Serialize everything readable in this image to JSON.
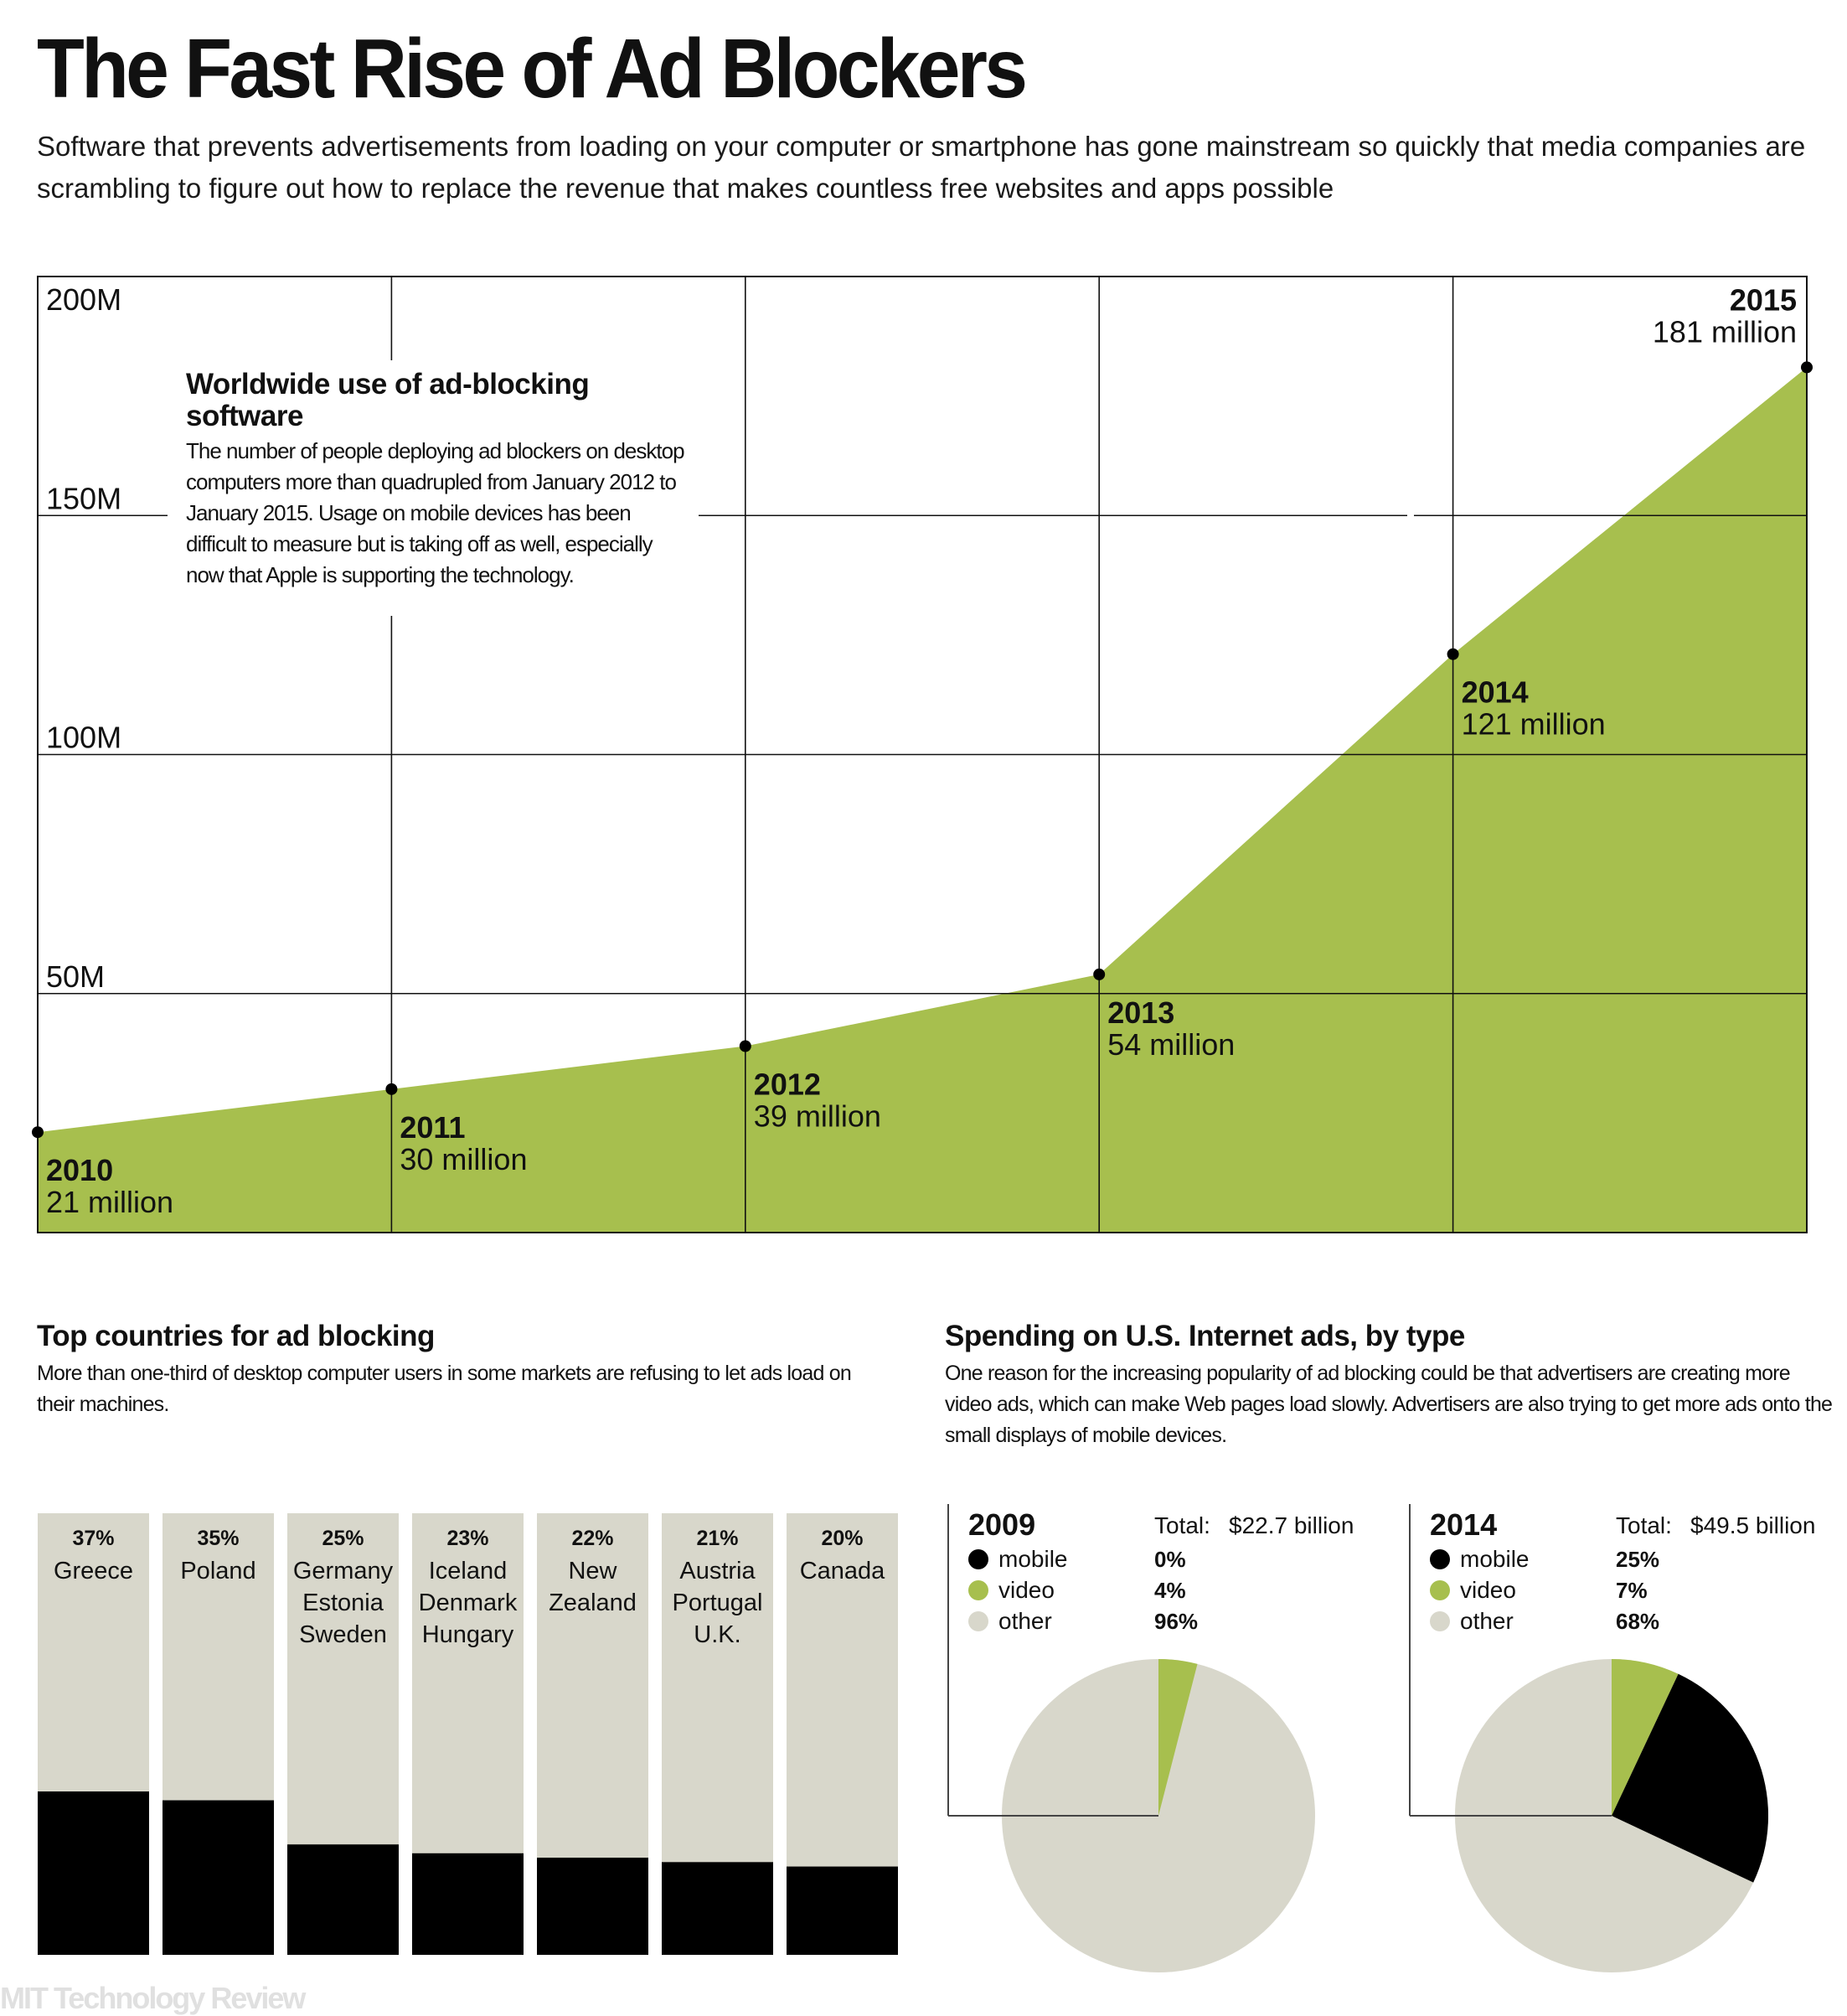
{
  "header": {
    "title": "The Fast Rise of Ad Blockers",
    "subtitle": "Software that prevents advertisements from loading on your computer or smartphone has gone mainstream so quickly that media companies are scrambling to figure out how to replace the revenue that makes countless free websites and apps possible"
  },
  "colors": {
    "green": "#a7bf4e",
    "beige": "#d8d7cb",
    "black": "#000000",
    "grid": "#111111",
    "logo": "#e0e0e0"
  },
  "annotation": {
    "title": "Worldwide use of ad-blocking software",
    "body": "The number of people deploying ad blockers on desktop computers more than quadrupled from January 2012 to January 2015. Usage on mobile devices has been difficult to measure but is taking off as well, especially now that Apple is supporting the technology."
  },
  "countries_section": {
    "title": "Top countries for ad blocking",
    "body": "More than one-third of desktop computer users in some markets are refusing to let ads load on their machines."
  },
  "spending_section": {
    "title": "Spending on U.S. Internet ads, by type",
    "body": "One reason for the increasing popularity of ad blocking could be that advertisers are creating more video ads, which can make Web pages load slowly. Advertisers are also trying to get more ads onto the small displays of mobile devices."
  },
  "footer": {
    "logo": "MIT Technology Review"
  },
  "chart_data": [
    {
      "type": "area",
      "title": "Worldwide use of ad-blocking software",
      "x": [
        "2010",
        "2011",
        "2012",
        "2013",
        "2014",
        "2015"
      ],
      "values": [
        21,
        30,
        39,
        54,
        121,
        181
      ],
      "unit": "million",
      "value_labels": [
        "21 million",
        "30 million",
        "39 million",
        "54 million",
        "121 million",
        "181 million"
      ],
      "ylim": [
        0,
        200
      ],
      "yticks": [
        50,
        100,
        150,
        200
      ],
      "ytick_labels": [
        "50M",
        "100M",
        "150M",
        "200M"
      ],
      "grid": true,
      "xlabel": "",
      "ylabel": ""
    },
    {
      "type": "bar",
      "stacked": true,
      "title": "Top countries for ad blocking",
      "categories": [
        {
          "pct_label": "37%",
          "names": [
            "Greece"
          ]
        },
        {
          "pct_label": "35%",
          "names": [
            "Poland"
          ]
        },
        {
          "pct_label": "25%",
          "names": [
            "Germany",
            "Estonia",
            "Sweden"
          ]
        },
        {
          "pct_label": "23%",
          "names": [
            "Iceland",
            "Denmark",
            "Hungary"
          ]
        },
        {
          "pct_label": "22%",
          "names": [
            "New",
            "Zealand"
          ]
        },
        {
          "pct_label": "21%",
          "names": [
            "Austria",
            "Portugal",
            "U.K."
          ]
        },
        {
          "pct_label": "20%",
          "names": [
            "Canada"
          ]
        }
      ],
      "values": [
        37,
        35,
        25,
        23,
        22,
        21,
        20
      ],
      "ylim": [
        0,
        100
      ]
    },
    {
      "type": "pie",
      "title": "2009",
      "total_label": "Total:",
      "total_value": "$22.7 billion",
      "slices": [
        {
          "label": "mobile",
          "value": 0,
          "pct_label": "0%"
        },
        {
          "label": "video",
          "value": 4,
          "pct_label": "4%"
        },
        {
          "label": "other",
          "value": 96,
          "pct_label": "96%"
        }
      ]
    },
    {
      "type": "pie",
      "title": "2014",
      "total_label": "Total:",
      "total_value": "$49.5 billion",
      "slices": [
        {
          "label": "mobile",
          "value": 25,
          "pct_label": "25%"
        },
        {
          "label": "video",
          "value": 7,
          "pct_label": "7%"
        },
        {
          "label": "other",
          "value": 68,
          "pct_label": "68%"
        }
      ]
    }
  ]
}
